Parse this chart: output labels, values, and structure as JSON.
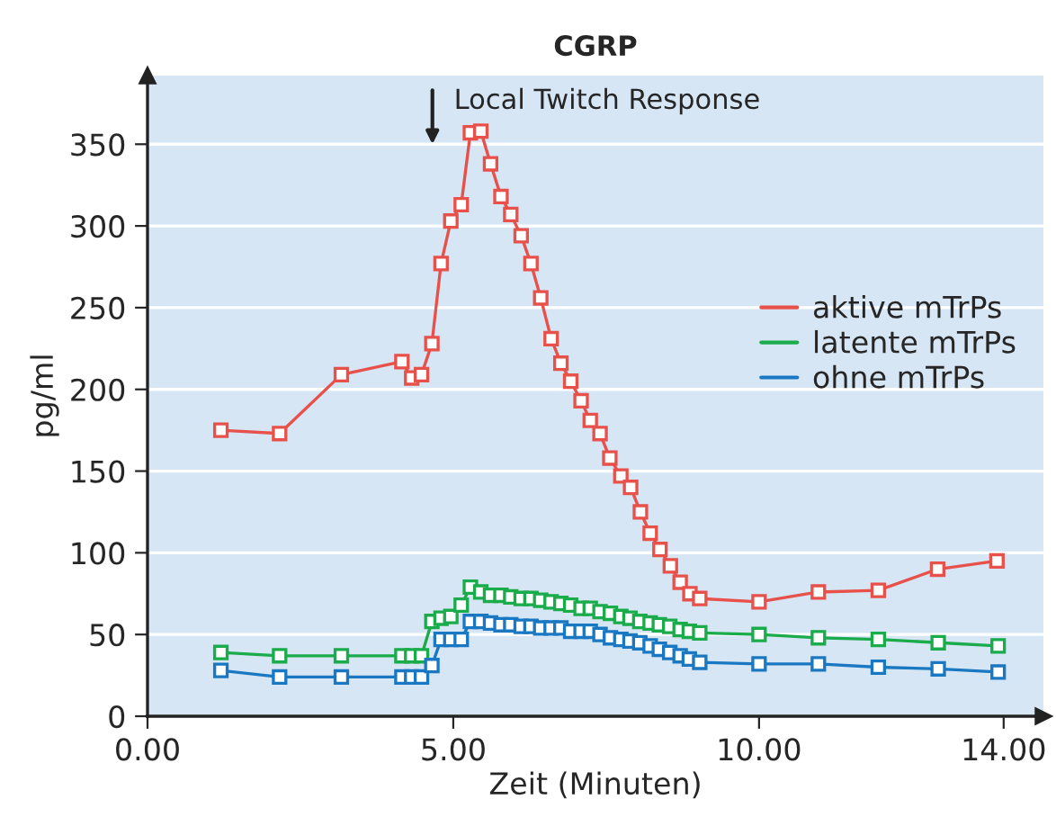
{
  "chart_data": {
    "type": "line",
    "title": "CGRP",
    "xlabel": "Zeit (Minuten)",
    "ylabel": "pg/ml",
    "annotations": [
      "Local Twitch Response"
    ],
    "series": [
      {
        "name": "aktive mTrPs",
        "color": "#e8504a",
        "x": [
          1.2,
          2.16,
          3.17,
          4.16,
          4.32,
          4.48,
          4.65,
          4.8,
          4.96,
          5.13,
          5.28,
          5.45,
          5.61,
          5.78,
          5.94,
          6.11,
          6.27,
          6.43,
          6.6,
          6.76,
          6.92,
          7.09,
          7.24,
          7.4,
          7.56,
          7.74,
          7.9,
          8.06,
          8.22,
          8.38,
          8.55,
          8.71,
          8.87,
          9.03,
          10.0,
          10.97,
          11.95,
          12.92,
          13.89
        ],
        "values": [
          175,
          173,
          209,
          217,
          207,
          209,
          228,
          277,
          303,
          313,
          357,
          358,
          338,
          318,
          307,
          294,
          277,
          256,
          231,
          216,
          205,
          193,
          181,
          173,
          158,
          147,
          140,
          125,
          112,
          102,
          92,
          82,
          75,
          72,
          70,
          76,
          77,
          90,
          95
        ]
      },
      {
        "name": "latente mTrPs",
        "color": "#1aab4b",
        "x": [
          1.2,
          2.16,
          3.17,
          4.16,
          4.32,
          4.48,
          4.65,
          4.8,
          4.96,
          5.13,
          5.28,
          5.45,
          5.61,
          5.78,
          5.94,
          6.11,
          6.27,
          6.43,
          6.6,
          6.76,
          6.92,
          7.09,
          7.24,
          7.4,
          7.57,
          7.74,
          7.89,
          8.05,
          8.22,
          8.37,
          8.54,
          8.71,
          8.86,
          9.03,
          10.0,
          10.97,
          11.95,
          12.93,
          13.91
        ],
        "values": [
          39,
          37,
          37,
          37,
          37,
          37,
          58,
          60,
          61,
          68,
          79,
          76,
          74,
          74,
          73,
          72,
          72,
          71,
          70,
          69,
          68,
          66,
          66,
          64,
          63,
          61,
          60,
          58,
          57,
          56,
          55,
          53,
          52,
          51,
          50,
          48,
          47,
          45,
          43
        ]
      },
      {
        "name": "ohne mTrPs",
        "color": "#1a78c2",
        "x": [
          1.2,
          2.16,
          3.17,
          4.16,
          4.32,
          4.48,
          4.65,
          4.8,
          4.96,
          5.13,
          5.28,
          5.45,
          5.61,
          5.78,
          5.94,
          6.11,
          6.27,
          6.43,
          6.6,
          6.76,
          6.92,
          7.09,
          7.24,
          7.4,
          7.57,
          7.74,
          7.89,
          8.05,
          8.22,
          8.37,
          8.54,
          8.71,
          8.86,
          9.03,
          10.0,
          10.97,
          11.95,
          12.93,
          13.91
        ],
        "values": [
          28,
          24,
          24,
          24,
          24,
          24,
          31,
          47,
          47,
          47,
          58,
          58,
          57,
          56,
          56,
          55,
          55,
          54,
          54,
          54,
          52,
          52,
          52,
          50,
          48,
          47,
          46,
          45,
          43,
          41,
          39,
          37,
          35,
          33,
          32,
          32,
          30,
          29,
          27
        ]
      }
    ],
    "xlim": [
      0,
      14.65
    ],
    "ylim": [
      0,
      392
    ],
    "xticks": [
      {
        "value": 0,
        "label": "0.00"
      },
      {
        "value": 5,
        "label": "5.00"
      },
      {
        "value": 10,
        "label": "10.00"
      },
      {
        "value": 14,
        "label": "14.00"
      }
    ],
    "yticks": [
      0,
      50,
      100,
      150,
      200,
      250,
      300,
      350
    ],
    "grid": "y",
    "legend": "right",
    "marker": "square",
    "line_style": "solid"
  }
}
